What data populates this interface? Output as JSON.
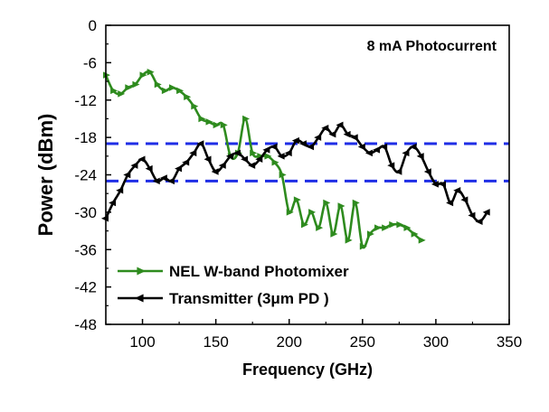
{
  "chart_data": {
    "type": "line",
    "title": "",
    "xlabel": "Frequency (GHz)",
    "ylabel": "Power (dBm)",
    "xlim": [
      75,
      350
    ],
    "ylim": [
      -48,
      0
    ],
    "xticks": [
      100,
      150,
      200,
      250,
      300,
      350
    ],
    "yticks": [
      0,
      -6,
      -12,
      -18,
      -24,
      -30,
      -36,
      -42,
      -48
    ],
    "annotation": "8 mA Photocurrent",
    "reference_lines": [
      -19,
      -25
    ],
    "reference_color": "#1f2ee6",
    "legend_position": "bottom-left",
    "series": [
      {
        "name": "NEL W-band Photomixer",
        "color": "#2e8b1e",
        "marker": "triangle-right",
        "x": [
          75,
          80,
          85,
          90,
          95,
          100,
          105,
          110,
          115,
          120,
          125,
          130,
          135,
          140,
          145,
          150,
          155,
          160,
          165,
          170,
          175,
          180,
          185,
          190,
          195,
          200,
          205,
          210,
          215,
          220,
          225,
          230,
          235,
          240,
          245,
          250,
          255,
          260,
          265,
          270,
          275,
          280,
          285,
          290
        ],
        "values": [
          -8,
          -10.5,
          -11,
          -10,
          -9.5,
          -8,
          -7.5,
          -9.5,
          -10.5,
          -10,
          -10.5,
          -11.5,
          -13,
          -15,
          -15.5,
          -16,
          -16,
          -21,
          -20.5,
          -15,
          -20.5,
          -21,
          -21,
          -22,
          -24,
          -30,
          -28,
          -32,
          -30,
          -32.5,
          -28.5,
          -33.5,
          -29,
          -34.5,
          -28.5,
          -35.5,
          -33.5,
          -32.5,
          -32.5,
          -32,
          -32,
          -32.5,
          -33.5,
          -34.5
        ]
      },
      {
        "name": "Transmitter (3μm PD )",
        "color": "#000000",
        "marker": "triangle-left",
        "x": [
          75,
          80,
          85,
          90,
          95,
          100,
          105,
          110,
          115,
          120,
          125,
          130,
          135,
          140,
          145,
          150,
          155,
          160,
          165,
          170,
          175,
          180,
          185,
          190,
          195,
          200,
          205,
          210,
          215,
          220,
          225,
          230,
          235,
          240,
          245,
          250,
          255,
          260,
          265,
          270,
          275,
          280,
          285,
          290,
          295,
          300,
          305,
          310,
          315,
          320,
          325,
          330,
          335
        ],
        "values": [
          -31,
          -28.5,
          -26.5,
          -24,
          -22.5,
          -21.5,
          -23,
          -25,
          -24.5,
          -25,
          -23,
          -22,
          -20.5,
          -19,
          -21.5,
          -23.5,
          -22.5,
          -21,
          -20.5,
          -21.5,
          -22.5,
          -21.5,
          -20,
          -19.5,
          -21,
          -20.5,
          -18.5,
          -19,
          -19.5,
          -18,
          -16.5,
          -17.5,
          -16,
          -17.5,
          -18,
          -19.5,
          -20.5,
          -20,
          -19.5,
          -22.5,
          -23.5,
          -20.5,
          -19.5,
          -21,
          -23.5,
          -25.5,
          -25.5,
          -28.5,
          -26.5,
          -28,
          -30.5,
          -31.5,
          -30
        ]
      }
    ]
  }
}
